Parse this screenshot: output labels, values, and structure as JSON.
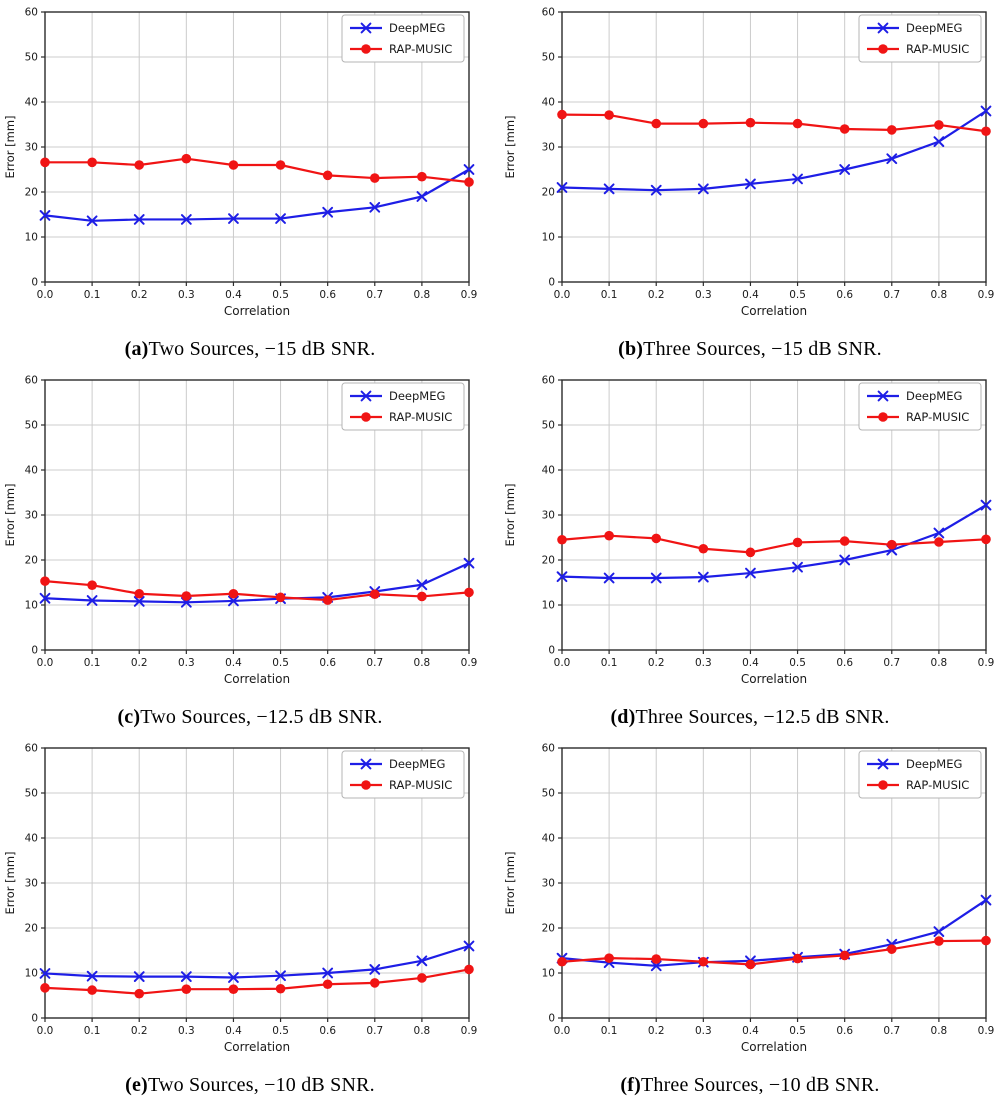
{
  "figure": {
    "kind": "2x3 panel line-chart figure",
    "xlabel": "Correlation",
    "ylabel": "Error [mm]"
  },
  "styles": {
    "deepmeg_color": "#1e1ee6",
    "rapmusic_color": "#f01414",
    "grid_color": "#cccccc",
    "spine_color": "#2b2b2b",
    "legend_border_color": "#b5b5b5",
    "legend_bg_color": "#ffffff",
    "text_color": "#1a1a1a"
  },
  "chart_data": [
    {
      "type": "line",
      "panel_label": "(a)",
      "caption": "Two Sources, −15 dB SNR.",
      "xlabel": "Correlation",
      "ylabel": "Error [mm]",
      "ylim": [
        0,
        60
      ],
      "yticks": [
        0,
        10,
        20,
        30,
        40,
        50,
        60
      ],
      "x": [
        0.0,
        0.1,
        0.2,
        0.3,
        0.4,
        0.5,
        0.6,
        0.7,
        0.8,
        0.9
      ],
      "xtick_labels": [
        "0.0",
        "0.1",
        "0.2",
        "0.3",
        "0.4",
        "0.5",
        "0.6",
        "0.7",
        "0.8",
        "0.9"
      ],
      "grid": true,
      "legend_position": "upper-right",
      "series": [
        {
          "name": "DeepMEG",
          "color_key": "deepmeg_color",
          "marker": "x",
          "values": [
            14.8,
            13.6,
            13.9,
            13.9,
            14.1,
            14.1,
            15.5,
            16.6,
            19.0,
            25.0
          ]
        },
        {
          "name": "RAP-MUSIC",
          "color_key": "rapmusic_color",
          "marker": "circle",
          "values": [
            26.6,
            26.6,
            26.0,
            27.4,
            26.0,
            26.0,
            23.7,
            23.1,
            23.4,
            22.2
          ]
        }
      ]
    },
    {
      "type": "line",
      "panel_label": "(b)",
      "caption": "Three Sources, −15 dB SNR.",
      "xlabel": "Correlation",
      "ylabel": "Error [mm]",
      "ylim": [
        0,
        60
      ],
      "yticks": [
        0,
        10,
        20,
        30,
        40,
        50,
        60
      ],
      "x": [
        0.0,
        0.1,
        0.2,
        0.3,
        0.4,
        0.5,
        0.6,
        0.7,
        0.8,
        0.9
      ],
      "xtick_labels": [
        "0.0",
        "0.1",
        "0.2",
        "0.3",
        "0.4",
        "0.5",
        "0.6",
        "0.7",
        "0.8",
        "0.9"
      ],
      "grid": true,
      "legend_position": "upper-right",
      "series": [
        {
          "name": "DeepMEG",
          "color_key": "deepmeg_color",
          "marker": "x",
          "values": [
            21.0,
            20.7,
            20.4,
            20.7,
            21.8,
            22.9,
            25.0,
            27.4,
            31.2,
            38.0
          ]
        },
        {
          "name": "RAP-MUSIC",
          "color_key": "rapmusic_color",
          "marker": "circle",
          "values": [
            37.2,
            37.1,
            35.2,
            35.2,
            35.4,
            35.2,
            34.0,
            33.8,
            34.9,
            33.5
          ]
        }
      ]
    },
    {
      "type": "line",
      "panel_label": "(c)",
      "caption": "Two Sources, −12.5 dB SNR.",
      "xlabel": "Correlation",
      "ylabel": "Error [mm]",
      "ylim": [
        0,
        60
      ],
      "yticks": [
        0,
        10,
        20,
        30,
        40,
        50,
        60
      ],
      "x": [
        0.0,
        0.1,
        0.2,
        0.3,
        0.4,
        0.5,
        0.6,
        0.7,
        0.8,
        0.9
      ],
      "xtick_labels": [
        "0.0",
        "0.1",
        "0.2",
        "0.3",
        "0.4",
        "0.5",
        "0.6",
        "0.7",
        "0.8",
        "0.9"
      ],
      "grid": true,
      "legend_position": "upper-right",
      "series": [
        {
          "name": "DeepMEG",
          "color_key": "deepmeg_color",
          "marker": "x",
          "values": [
            11.5,
            11.0,
            10.8,
            10.6,
            10.9,
            11.4,
            11.7,
            13.0,
            14.5,
            19.3
          ]
        },
        {
          "name": "RAP-MUSIC",
          "color_key": "rapmusic_color",
          "marker": "circle",
          "values": [
            15.3,
            14.4,
            12.5,
            12.0,
            12.5,
            11.7,
            11.1,
            12.4,
            11.9,
            12.8
          ]
        }
      ]
    },
    {
      "type": "line",
      "panel_label": "(d)",
      "caption": "Three Sources, −12.5 dB SNR.",
      "xlabel": "Correlation",
      "ylabel": "Error [mm]",
      "ylim": [
        0,
        60
      ],
      "yticks": [
        0,
        10,
        20,
        30,
        40,
        50,
        60
      ],
      "x": [
        0.0,
        0.1,
        0.2,
        0.3,
        0.4,
        0.5,
        0.6,
        0.7,
        0.8,
        0.9
      ],
      "xtick_labels": [
        "0.0",
        "0.1",
        "0.2",
        "0.3",
        "0.4",
        "0.5",
        "0.6",
        "0.7",
        "0.8",
        "0.9"
      ],
      "grid": true,
      "legend_position": "upper-right",
      "series": [
        {
          "name": "DeepMEG",
          "color_key": "deepmeg_color",
          "marker": "x",
          "values": [
            16.3,
            16.0,
            16.0,
            16.2,
            17.1,
            18.4,
            20.0,
            22.2,
            26.0,
            32.2
          ]
        },
        {
          "name": "RAP-MUSIC",
          "color_key": "rapmusic_color",
          "marker": "circle",
          "values": [
            24.5,
            25.4,
            24.8,
            22.5,
            21.7,
            23.9,
            24.2,
            23.4,
            24.0,
            24.6
          ]
        }
      ]
    },
    {
      "type": "line",
      "panel_label": "(e)",
      "caption": "Two Sources, −10 dB SNR.",
      "xlabel": "Correlation",
      "ylabel": "Error [mm]",
      "ylim": [
        0,
        60
      ],
      "yticks": [
        0,
        10,
        20,
        30,
        40,
        50,
        60
      ],
      "x": [
        0.0,
        0.1,
        0.2,
        0.3,
        0.4,
        0.5,
        0.6,
        0.7,
        0.8,
        0.9
      ],
      "xtick_labels": [
        "0.0",
        "0.1",
        "0.2",
        "0.3",
        "0.4",
        "0.5",
        "0.6",
        "0.7",
        "0.8",
        "0.9"
      ],
      "grid": true,
      "legend_position": "upper-right",
      "series": [
        {
          "name": "DeepMEG",
          "color_key": "deepmeg_color",
          "marker": "x",
          "values": [
            9.9,
            9.3,
            9.2,
            9.2,
            9.0,
            9.4,
            10.0,
            10.8,
            12.7,
            16.0
          ]
        },
        {
          "name": "RAP-MUSIC",
          "color_key": "rapmusic_color",
          "marker": "circle",
          "values": [
            6.7,
            6.2,
            5.4,
            6.4,
            6.4,
            6.5,
            7.5,
            7.8,
            8.9,
            10.8
          ]
        }
      ]
    },
    {
      "type": "line",
      "panel_label": "(f)",
      "caption": "Three Sources, −10 dB SNR.",
      "xlabel": "Correlation",
      "ylabel": "Error [mm]",
      "ylim": [
        0,
        60
      ],
      "yticks": [
        0,
        10,
        20,
        30,
        40,
        50,
        60
      ],
      "x": [
        0.0,
        0.1,
        0.2,
        0.3,
        0.4,
        0.5,
        0.6,
        0.7,
        0.8,
        0.9
      ],
      "xtick_labels": [
        "0.0",
        "0.1",
        "0.2",
        "0.3",
        "0.4",
        "0.5",
        "0.6",
        "0.7",
        "0.8",
        "0.9"
      ],
      "grid": true,
      "legend_position": "upper-right",
      "series": [
        {
          "name": "DeepMEG",
          "color_key": "deepmeg_color",
          "marker": "x",
          "values": [
            13.3,
            12.3,
            11.6,
            12.4,
            12.7,
            13.5,
            14.2,
            16.4,
            19.2,
            26.2
          ]
        },
        {
          "name": "RAP-MUSIC",
          "color_key": "rapmusic_color",
          "marker": "circle",
          "values": [
            12.5,
            13.3,
            13.1,
            12.5,
            11.9,
            13.2,
            13.9,
            15.3,
            17.1,
            17.2
          ]
        }
      ]
    }
  ]
}
